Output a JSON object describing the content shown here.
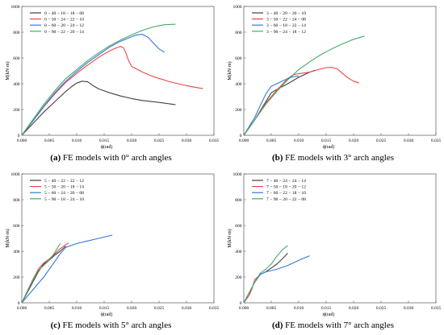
{
  "chart_data": [
    {
      "type": "line",
      "panel_letter": "(a)",
      "caption": "FE models with 0° arch angles",
      "xlabel": "ϕ(rad)",
      "ylabel": "M(kN·m)",
      "xlim": [
        0,
        0.035
      ],
      "ylim": [
        0,
        1000
      ],
      "xticks": [
        "0.000",
        "0.005",
        "0.010",
        "0.015",
        "0.020",
        "0.025",
        "0.030",
        "0.035"
      ],
      "yticks": [
        "0",
        "200",
        "400",
        "600",
        "800",
        "1000"
      ],
      "legend_position": "top-left",
      "series": [
        {
          "name": "0 − 40 − 18 − 18 − 08",
          "color": "#404040",
          "points": [
            [
              0,
              0
            ],
            [
              0.002,
              90
            ],
            [
              0.004,
              180
            ],
            [
              0.006,
              260
            ],
            [
              0.008,
              340
            ],
            [
              0.009,
              375
            ],
            [
              0.01,
              405
            ],
            [
              0.011,
              420
            ],
            [
              0.012,
              415
            ],
            [
              0.013,
              385
            ],
            [
              0.014,
              360
            ],
            [
              0.016,
              330
            ],
            [
              0.018,
              305
            ],
            [
              0.02,
              285
            ],
            [
              0.022,
              270
            ],
            [
              0.025,
              255
            ],
            [
              0.028,
              238
            ]
          ]
        },
        {
          "name": "0 − 50 − 24 − 22 − 10",
          "color": "#ee4444",
          "points": [
            [
              0,
              0
            ],
            [
              0.002,
              110
            ],
            [
              0.004,
              220
            ],
            [
              0.006,
              320
            ],
            [
              0.008,
              410
            ],
            [
              0.01,
              480
            ],
            [
              0.012,
              545
            ],
            [
              0.014,
              605
            ],
            [
              0.016,
              655
            ],
            [
              0.017,
              675
            ],
            [
              0.018,
              690
            ],
            [
              0.0185,
              680
            ],
            [
              0.019,
              635
            ],
            [
              0.0195,
              575
            ],
            [
              0.02,
              535
            ],
            [
              0.022,
              490
            ],
            [
              0.024,
              455
            ],
            [
              0.027,
              415
            ],
            [
              0.03,
              385
            ],
            [
              0.033,
              362
            ]
          ]
        },
        {
          "name": "0 − 60 − 20 − 24 − 12",
          "color": "#3377dd",
          "points": [
            [
              0,
              0
            ],
            [
              0.002,
              110
            ],
            [
              0.004,
              225
            ],
            [
              0.006,
              330
            ],
            [
              0.008,
              420
            ],
            [
              0.01,
              495
            ],
            [
              0.012,
              565
            ],
            [
              0.014,
              625
            ],
            [
              0.016,
              685
            ],
            [
              0.018,
              730
            ],
            [
              0.02,
              765
            ],
            [
              0.021,
              780
            ],
            [
              0.022,
              783
            ],
            [
              0.023,
              760
            ],
            [
              0.024,
              715
            ],
            [
              0.025,
              670
            ],
            [
              0.026,
              645
            ]
          ]
        },
        {
          "name": "0 − 90 − 22 − 20 − 14",
          "color": "#44aa66",
          "points": [
            [
              0,
              0
            ],
            [
              0.002,
              120
            ],
            [
              0.004,
              240
            ],
            [
              0.006,
              345
            ],
            [
              0.008,
              440
            ],
            [
              0.01,
              510
            ],
            [
              0.012,
              580
            ],
            [
              0.014,
              640
            ],
            [
              0.016,
              695
            ],
            [
              0.018,
              740
            ],
            [
              0.02,
              780
            ],
            [
              0.022,
              815
            ],
            [
              0.024,
              842
            ],
            [
              0.026,
              858
            ],
            [
              0.028,
              862
            ]
          ]
        }
      ]
    },
    {
      "type": "line",
      "panel_letter": "(b)",
      "caption": "FE models with 3° arch angles",
      "xlabel": "ϕ(rad)",
      "ylabel": "M(kN·m)",
      "xlim": [
        0,
        0.035
      ],
      "ylim": [
        0,
        1000
      ],
      "xticks": [
        "0.000",
        "0.005",
        "0.010",
        "0.015",
        "0.020",
        "0.025",
        "0.030",
        "0.035"
      ],
      "yticks": [
        "0",
        "200",
        "400",
        "600",
        "800",
        "1000"
      ],
      "legend_position": "top-left",
      "series": [
        {
          "name": "3 − 40 − 20 − 20 − 10",
          "color": "#404040",
          "points": [
            [
              0,
              0
            ],
            [
              0.002,
              120
            ],
            [
              0.004,
              260
            ],
            [
              0.005,
              330
            ],
            [
              0.006,
              355
            ],
            [
              0.008,
              400
            ],
            [
              0.01,
              450
            ],
            [
              0.012,
              490
            ],
            [
              0.013,
              505
            ]
          ]
        },
        {
          "name": "3 − 50 − 22 − 24 − 08",
          "color": "#ee4444",
          "points": [
            [
              0,
              0
            ],
            [
              0.002,
              120
            ],
            [
              0.004,
              250
            ],
            [
              0.006,
              350
            ],
            [
              0.008,
              440
            ],
            [
              0.009,
              470
            ],
            [
              0.01,
              478
            ],
            [
              0.012,
              490
            ],
            [
              0.014,
              515
            ],
            [
              0.015,
              525
            ],
            [
              0.016,
              528
            ],
            [
              0.017,
              515
            ],
            [
              0.018,
              480
            ],
            [
              0.019,
              445
            ],
            [
              0.02,
              420
            ],
            [
              0.021,
              405
            ]
          ]
        },
        {
          "name": "3 − 60 − 18 − 22 − 14",
          "color": "#3377dd",
          "points": [
            [
              0,
              0
            ],
            [
              0.002,
              140
            ],
            [
              0.003,
              230
            ],
            [
              0.004,
              320
            ],
            [
              0.005,
              380
            ],
            [
              0.006,
              400
            ],
            [
              0.007,
              420
            ],
            [
              0.008,
              440
            ],
            [
              0.009,
              455
            ],
            [
              0.01,
              460
            ]
          ]
        },
        {
          "name": "3 − 90 − 24 − 18 − 12",
          "color": "#44aa66",
          "points": [
            [
              0,
              0
            ],
            [
              0.002,
              120
            ],
            [
              0.004,
              240
            ],
            [
              0.006,
              340
            ],
            [
              0.008,
              430
            ],
            [
              0.01,
              510
            ],
            [
              0.012,
              570
            ],
            [
              0.014,
              625
            ],
            [
              0.016,
              670
            ],
            [
              0.018,
              710
            ],
            [
              0.02,
              745
            ],
            [
              0.022,
              770
            ]
          ]
        }
      ]
    },
    {
      "type": "line",
      "panel_letter": "(c)",
      "caption": "FE models with 5° arch angles",
      "xlabel": "ϕ(rad)",
      "ylabel": "M(kN·m)",
      "xlim": [
        0,
        0.035
      ],
      "ylim": [
        0,
        1000
      ],
      "xticks": [
        "0.000",
        "0.005",
        "0.010",
        "0.015",
        "0.020",
        "0.025",
        "0.030",
        "0.035"
      ],
      "yticks": [
        "0",
        "200",
        "400",
        "600",
        "800",
        "1000"
      ],
      "legend_position": "top-left",
      "series": [
        {
          "name": "5 − 40 − 22 − 22 − 12",
          "color": "#404040",
          "points": [
            [
              0,
              0
            ],
            [
              0.001,
              80
            ],
            [
              0.002,
              160
            ],
            [
              0.003,
              240
            ],
            [
              0.004,
              300
            ],
            [
              0.005,
              330
            ],
            [
              0.006,
              370
            ],
            [
              0.007,
              400
            ],
            [
              0.008,
              440
            ]
          ]
        },
        {
          "name": "5 − 50 − 20 − 18 − 14",
          "color": "#ee4444",
          "points": [
            [
              0,
              0
            ],
            [
              0.001,
              90
            ],
            [
              0.002,
              180
            ],
            [
              0.003,
              260
            ],
            [
              0.004,
              310
            ],
            [
              0.005,
              340
            ],
            [
              0.006,
              380
            ],
            [
              0.007,
              420
            ],
            [
              0.0085,
              465
            ]
          ]
        },
        {
          "name": "5 − 60 − 24 − 20 − 08",
          "color": "#3377dd",
          "points": [
            [
              0,
              0
            ],
            [
              0.001,
              50
            ],
            [
              0.002,
              100
            ],
            [
              0.003,
              150
            ],
            [
              0.004,
              200
            ],
            [
              0.005,
              260
            ],
            [
              0.006,
              320
            ],
            [
              0.007,
              380
            ],
            [
              0.008,
              430
            ],
            [
              0.01,
              460
            ],
            [
              0.012,
              480
            ],
            [
              0.014,
              500
            ],
            [
              0.0165,
              525
            ]
          ]
        },
        {
          "name": "5 − 90 − 18 − 24 − 10",
          "color": "#44aa66",
          "points": [
            [
              0,
              0
            ],
            [
              0.001,
              90
            ],
            [
              0.002,
              175
            ],
            [
              0.003,
              250
            ],
            [
              0.004,
              290
            ],
            [
              0.005,
              330
            ],
            [
              0.006,
              390
            ],
            [
              0.007,
              460
            ]
          ]
        }
      ]
    },
    {
      "type": "line",
      "panel_letter": "(d)",
      "caption": "FE models with 7° arch angles",
      "xlabel": "ϕ(rad)",
      "ylabel": "M(kN·m)",
      "xlim": [
        0,
        0.035
      ],
      "ylim": [
        0,
        1000
      ],
      "xticks": [
        "0.000",
        "0.005",
        "0.010",
        "0.015",
        "0.020",
        "0.025",
        "0.030",
        "0.035"
      ],
      "yticks": [
        "0",
        "200",
        "400",
        "600",
        "800",
        "1000"
      ],
      "legend_position": "top-left",
      "series": [
        {
          "name": "7 − 40 − 24 − 24 − 14",
          "color": "#404040",
          "points": [
            [
              0,
              0
            ],
            [
              0.001,
              80
            ],
            [
              0.002,
              160
            ],
            [
              0.003,
              220
            ],
            [
              0.004,
              240
            ],
            [
              0.005,
              270
            ],
            [
              0.006,
              300
            ],
            [
              0.007,
              340
            ],
            [
              0.008,
              385
            ]
          ]
        },
        {
          "name": "7 − 50 − 18 − 20 − 12",
          "color": "#ee4444",
          "points": [
            [
              0,
              0
            ],
            [
              0.001,
              60
            ],
            [
              0.0015,
              110
            ],
            [
              0.002,
              180
            ],
            [
              0.0025,
              200
            ]
          ]
        },
        {
          "name": "7 − 60 − 22 − 18 − 10",
          "color": "#3377dd",
          "points": [
            [
              0,
              0
            ],
            [
              0.001,
              80
            ],
            [
              0.002,
              160
            ],
            [
              0.003,
              220
            ],
            [
              0.004,
              240
            ],
            [
              0.006,
              260
            ],
            [
              0.008,
              290
            ],
            [
              0.01,
              330
            ],
            [
              0.012,
              365
            ]
          ]
        },
        {
          "name": "7 − 90 − 20 − 22 − 08",
          "color": "#44aa66",
          "points": [
            [
              0,
              0
            ],
            [
              0.001,
              80
            ],
            [
              0.002,
              160
            ],
            [
              0.003,
              230
            ],
            [
              0.004,
              260
            ],
            [
              0.005,
              300
            ],
            [
              0.006,
              360
            ],
            [
              0.007,
              410
            ],
            [
              0.008,
              445
            ]
          ]
        }
      ]
    }
  ]
}
